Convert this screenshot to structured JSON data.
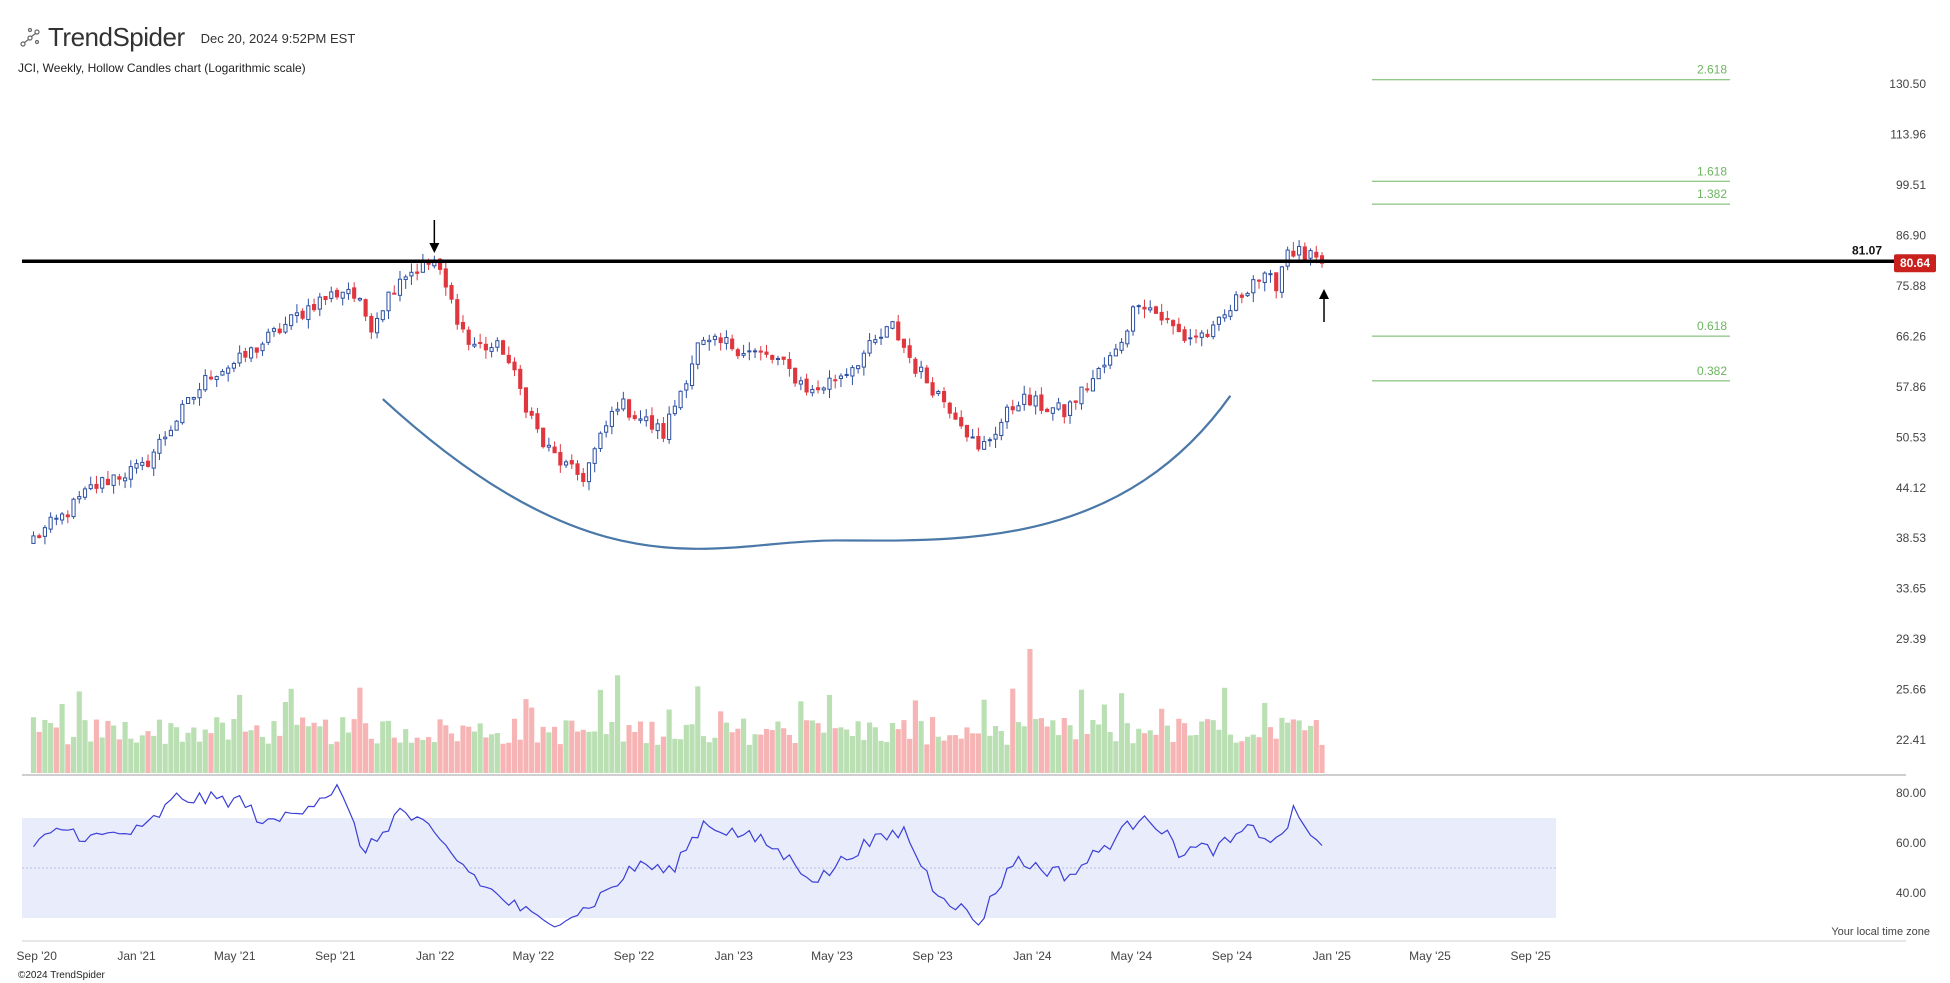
{
  "header": {
    "brand": "TrendSpider",
    "timestamp": "Dec 20, 2024 9:52PM EST",
    "subtitle": "JCI, Weekly, Hollow Candles chart (Logarithmic scale)",
    "timezone_note": "Your local time zone",
    "copyright": "©2024 TrendSpider"
  },
  "colors": {
    "up": "#2c4fa3",
    "down": "#e0373f",
    "vol_up": "#b9dfb3",
    "vol_down": "#f7b4b4",
    "fib": "#6cb55f",
    "rsi_line": "#3b3fd6",
    "rsi_band": "#e9ecfb",
    "arc": "#4a78a8",
    "badge": "#c9211e"
  },
  "chart_data": {
    "type": "candlestick",
    "symbol": "JCI",
    "interval": "Weekly",
    "scale": "log",
    "price_axis_ticks": [
      "130.50",
      "113.96",
      "99.51",
      "86.90",
      "75.88",
      "66.26",
      "57.86",
      "50.53",
      "44.12",
      "38.53",
      "33.65",
      "29.39",
      "25.66",
      "22.41"
    ],
    "time_axis_ticks": [
      "Sep '20",
      "Jan '21",
      "May '21",
      "Sep '21",
      "Jan '22",
      "May '22",
      "Sep '22",
      "Jan '23",
      "May '23",
      "Sep '23",
      "Jan '24",
      "May '24",
      "Sep '24",
      "Jan '25",
      "May '25",
      "Sep '25"
    ],
    "close_path": [
      {
        "date": "2020-08-28",
        "close": 38.5
      },
      {
        "date": "2020-10-02",
        "close": 40.8
      },
      {
        "date": "2020-11-06",
        "close": 44.0
      },
      {
        "date": "2020-12-04",
        "close": 45.5
      },
      {
        "date": "2021-01-08",
        "close": 46.5
      },
      {
        "date": "2021-02-12",
        "close": 52.0
      },
      {
        "date": "2021-04-02",
        "close": 60.0
      },
      {
        "date": "2021-05-07",
        "close": 62.0
      },
      {
        "date": "2021-06-25",
        "close": 67.5
      },
      {
        "date": "2021-08-06",
        "close": 72.5
      },
      {
        "date": "2021-09-17",
        "close": 75.5
      },
      {
        "date": "2021-10-15",
        "close": 68.5
      },
      {
        "date": "2021-11-19",
        "close": 78.0
      },
      {
        "date": "2021-12-31",
        "close": 81.0
      },
      {
        "date": "2022-02-11",
        "close": 65.0
      },
      {
        "date": "2022-03-25",
        "close": 64.0
      },
      {
        "date": "2022-05-13",
        "close": 49.5
      },
      {
        "date": "2022-06-17",
        "close": 46.0
      },
      {
        "date": "2022-07-01",
        "close": 45.5
      },
      {
        "date": "2022-08-12",
        "close": 55.5
      },
      {
        "date": "2022-10-07",
        "close": 51.0
      },
      {
        "date": "2022-11-18",
        "close": 64.5
      },
      {
        "date": "2022-12-23",
        "close": 65.0
      },
      {
        "date": "2023-02-24",
        "close": 62.0
      },
      {
        "date": "2023-04-07",
        "close": 57.0
      },
      {
        "date": "2023-05-19",
        "close": 60.5
      },
      {
        "date": "2023-07-14",
        "close": 68.0
      },
      {
        "date": "2023-08-11",
        "close": 61.0
      },
      {
        "date": "2023-10-06",
        "close": 53.0
      },
      {
        "date": "2023-10-27",
        "close": 48.5
      },
      {
        "date": "2023-12-15",
        "close": 56.0
      },
      {
        "date": "2024-02-09",
        "close": 54.0
      },
      {
        "date": "2024-04-12",
        "close": 63.5
      },
      {
        "date": "2024-05-10",
        "close": 73.5
      },
      {
        "date": "2024-07-05",
        "close": 66.0
      },
      {
        "date": "2024-08-09",
        "close": 67.0
      },
      {
        "date": "2024-09-27",
        "close": 77.5
      },
      {
        "date": "2024-10-25",
        "close": 76.5
      },
      {
        "date": "2024-11-08",
        "close": 84.0
      },
      {
        "date": "2024-12-20",
        "close": 80.64
      }
    ],
    "rsi_path": [
      {
        "date": "2020-08-28",
        "rsi": 58
      },
      {
        "date": "2020-10-02",
        "rsi": 66
      },
      {
        "date": "2020-11-06",
        "rsi": 62
      },
      {
        "date": "2021-01-08",
        "rsi": 65
      },
      {
        "date": "2021-02-19",
        "rsi": 78
      },
      {
        "date": "2021-05-07",
        "rsi": 77
      },
      {
        "date": "2021-06-11",
        "rsi": 67
      },
      {
        "date": "2021-09-03",
        "rsi": 82
      },
      {
        "date": "2021-10-08",
        "rsi": 56
      },
      {
        "date": "2021-11-19",
        "rsi": 73
      },
      {
        "date": "2021-12-17",
        "rsi": 67
      },
      {
        "date": "2022-03-04",
        "rsi": 42
      },
      {
        "date": "2022-05-13",
        "rsi": 28
      },
      {
        "date": "2022-07-01",
        "rsi": 33
      },
      {
        "date": "2022-09-09",
        "rsi": 52
      },
      {
        "date": "2022-10-14",
        "rsi": 48
      },
      {
        "date": "2022-11-25",
        "rsi": 68
      },
      {
        "date": "2023-02-10",
        "rsi": 60
      },
      {
        "date": "2023-04-14",
        "rsi": 45
      },
      {
        "date": "2023-06-02",
        "rsi": 58
      },
      {
        "date": "2023-07-28",
        "rsi": 65
      },
      {
        "date": "2023-09-01",
        "rsi": 43
      },
      {
        "date": "2023-10-27",
        "rsi": 28
      },
      {
        "date": "2023-12-08",
        "rsi": 53
      },
      {
        "date": "2024-02-16",
        "rsi": 47
      },
      {
        "date": "2024-05-03",
        "rsi": 68
      },
      {
        "date": "2024-05-17",
        "rsi": 73
      },
      {
        "date": "2024-06-28",
        "rsi": 57
      },
      {
        "date": "2024-08-16",
        "rsi": 58
      },
      {
        "date": "2024-09-27",
        "rsi": 66
      },
      {
        "date": "2024-10-25",
        "rsi": 60
      },
      {
        "date": "2024-11-15",
        "rsi": 72
      },
      {
        "date": "2024-12-20",
        "rsi": 59
      }
    ],
    "rsi": {
      "axis_ticks": [
        "80.00",
        "60.00",
        "40.00"
      ],
      "band_upper": 70,
      "band_lower": 30,
      "midline": 50
    },
    "resistance": {
      "price": 81.07,
      "label": "81.07"
    },
    "last_price": {
      "price": 80.64,
      "label": "80.64"
    },
    "fib_levels": [
      {
        "label": "2.618",
        "price": 132.0
      },
      {
        "label": "1.618",
        "price": 100.5
      },
      {
        "label": "1.382",
        "price": 94.5
      },
      {
        "label": "0.618",
        "price": 66.3
      },
      {
        "label": "0.382",
        "price": 58.8
      }
    ],
    "annotations": {
      "down_arrow_date": "2021-12-31",
      "up_arrow_date": "2024-12-20",
      "rounded_bottom": {
        "start_date": "2021-10-29",
        "bottom_date": "2023-05-05",
        "end_date": "2024-08-30",
        "start_price": 56.0,
        "bottom_price": 38.3,
        "end_price": 56.5
      }
    }
  }
}
